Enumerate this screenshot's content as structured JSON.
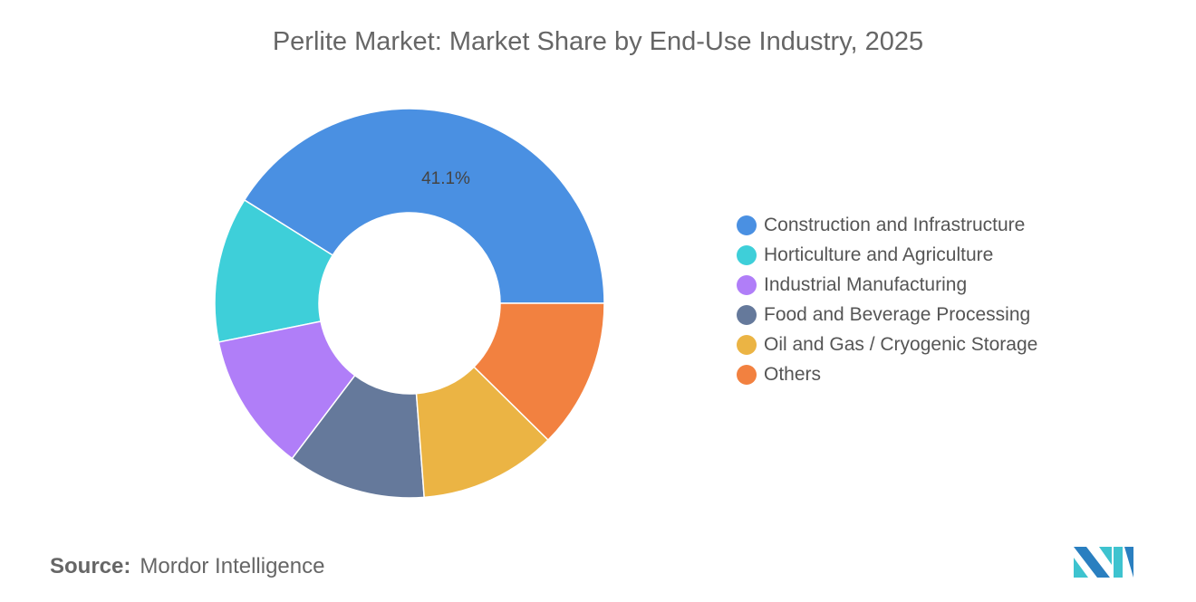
{
  "chart_data": {
    "type": "pie",
    "title": "Perlite Market: Market Share by End-Use Industry, 2025",
    "categories": [
      "Construction and Infrastructure",
      "Horticulture and Agriculture",
      "Industrial Manufacturing",
      "Food and Beverage Processing",
      "Oil and Gas / Cryogenic Storage",
      "Others"
    ],
    "values": [
      41.1,
      12.1,
      11.5,
      11.5,
      11.4,
      12.4
    ],
    "data_labels": [
      "41.1%"
    ],
    "colors": [
      "#4a90e2",
      "#3ecfd9",
      "#b07ef8",
      "#65799b",
      "#ebb444",
      "#f28140"
    ],
    "donut": true,
    "legend_position": "right"
  },
  "source": {
    "label": "Source:",
    "value": "Mordor Intelligence"
  }
}
